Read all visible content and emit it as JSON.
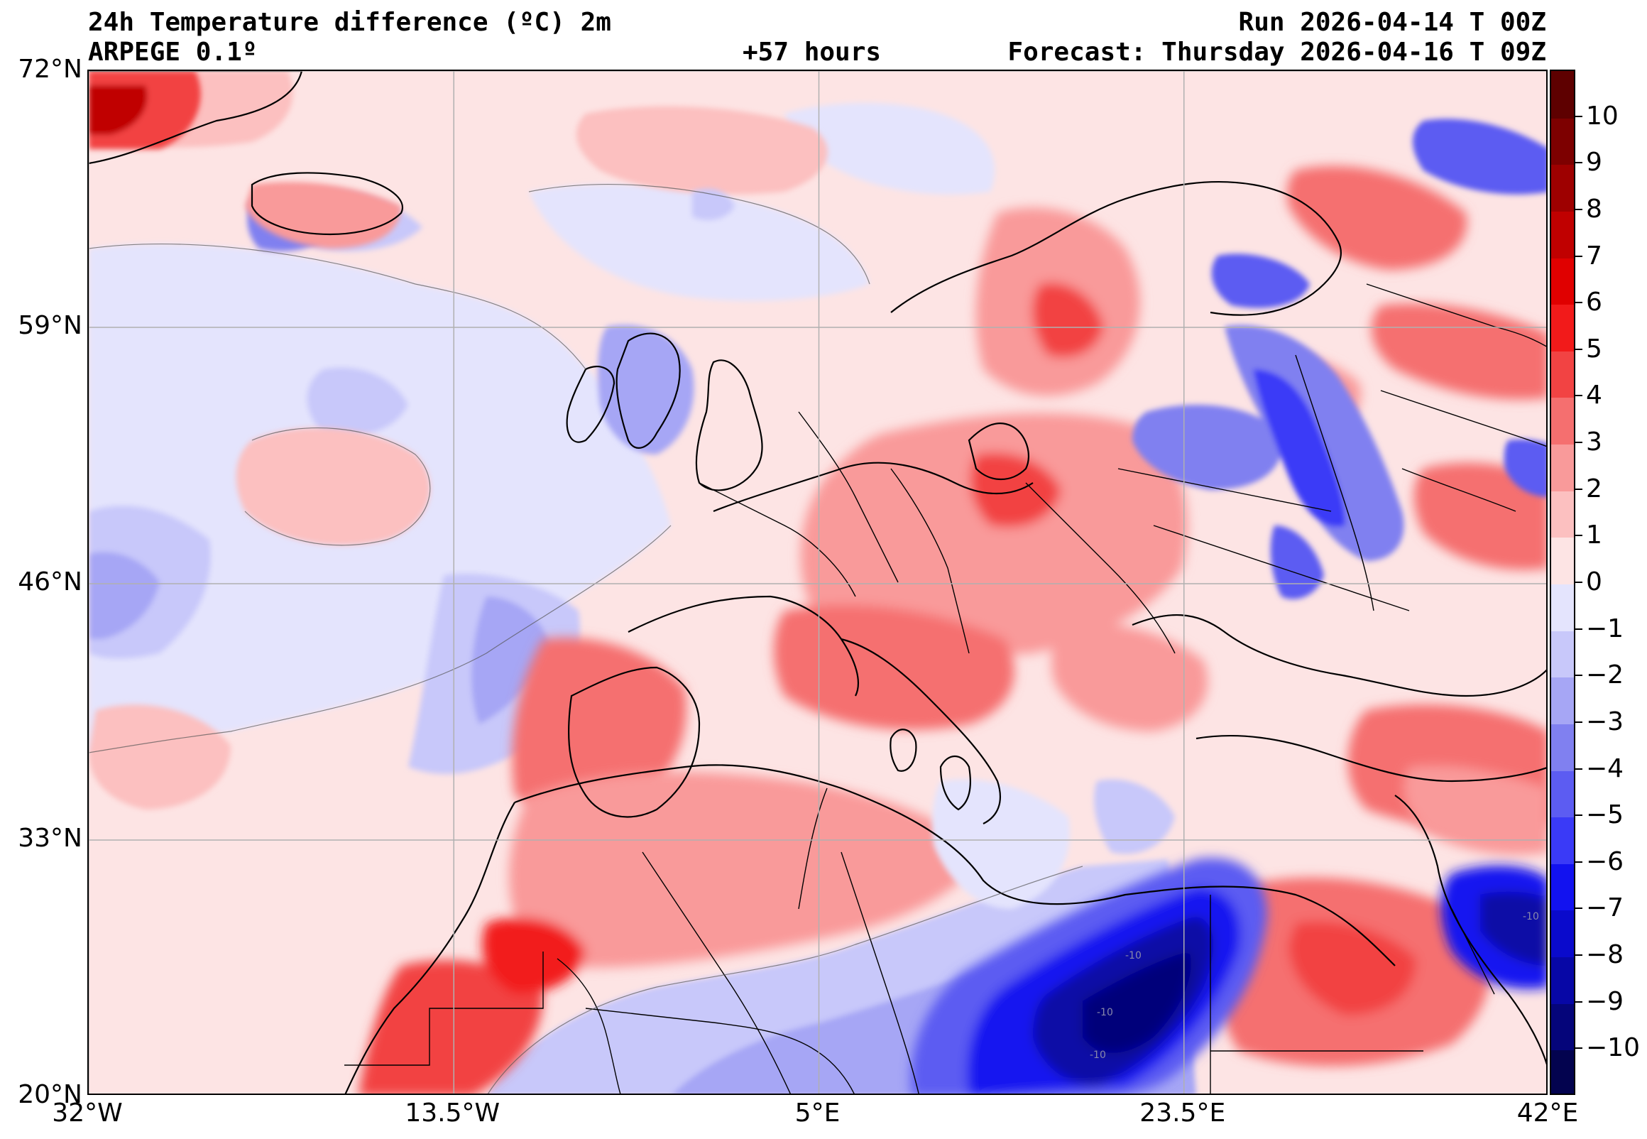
{
  "header": {
    "title": "24h Temperature difference (ºC) 2m",
    "model": "ARPEGE 0.1º",
    "lead_time": "+57 hours",
    "run": "Run 2026-04-14 T 00Z",
    "forecast": "Forecast: Thursday 2026-04-16 T 09Z"
  },
  "map": {
    "lat_range": [
      20,
      72
    ],
    "lon_range": [
      -32,
      42
    ],
    "lat_labels": [
      {
        "lat": 72,
        "label": "72°N"
      },
      {
        "lat": 59,
        "label": "59°N"
      },
      {
        "lat": 46,
        "label": "46°N"
      },
      {
        "lat": 33,
        "label": "33°N"
      },
      {
        "lat": 20,
        "label": "20°N"
      }
    ],
    "lon_labels": [
      {
        "lon": -32,
        "label": "32°W"
      },
      {
        "lon": -13.5,
        "label": "13.5°W"
      },
      {
        "lon": 5,
        "label": "5°E"
      },
      {
        "lon": 23.5,
        "label": "23.5°E"
      },
      {
        "lon": 42,
        "label": "42°E"
      }
    ],
    "grid": true
  },
  "colorbar": {
    "min": -11,
    "max": 11,
    "ticks": [
      {
        "value": 10,
        "label": "10"
      },
      {
        "value": 9,
        "label": "9"
      },
      {
        "value": 8,
        "label": "8"
      },
      {
        "value": 7,
        "label": "7"
      },
      {
        "value": 6,
        "label": "6"
      },
      {
        "value": 5,
        "label": "5"
      },
      {
        "value": 4,
        "label": "4"
      },
      {
        "value": 3,
        "label": "3"
      },
      {
        "value": 2,
        "label": "2"
      },
      {
        "value": 1,
        "label": "1"
      },
      {
        "value": 0,
        "label": "0"
      },
      {
        "value": -1,
        "label": "−1"
      },
      {
        "value": -2,
        "label": "−2"
      },
      {
        "value": -3,
        "label": "−3"
      },
      {
        "value": -4,
        "label": "−4"
      },
      {
        "value": -5,
        "label": "−5"
      },
      {
        "value": -6,
        "label": "−6"
      },
      {
        "value": -7,
        "label": "−7"
      },
      {
        "value": -8,
        "label": "−8"
      },
      {
        "value": -9,
        "label": "−9"
      },
      {
        "value": -10,
        "label": "−10"
      }
    ],
    "colors": [
      "#03034f",
      "#05057a",
      "#0707a6",
      "#0a0acc",
      "#1212f0",
      "#3a3af7",
      "#5c5cf2",
      "#8080f0",
      "#a6a6f5",
      "#c8c8fa",
      "#e4e4fd",
      "#fde4e4",
      "#fcc0c0",
      "#f99a9a",
      "#f56f6f",
      "#f24343",
      "#f21a1a",
      "#e00000",
      "#c00000",
      "#9e0000",
      "#7d0000",
      "#5e0000"
    ]
  },
  "contour_labels": [
    "-10",
    "-10",
    "-10",
    "-10"
  ]
}
